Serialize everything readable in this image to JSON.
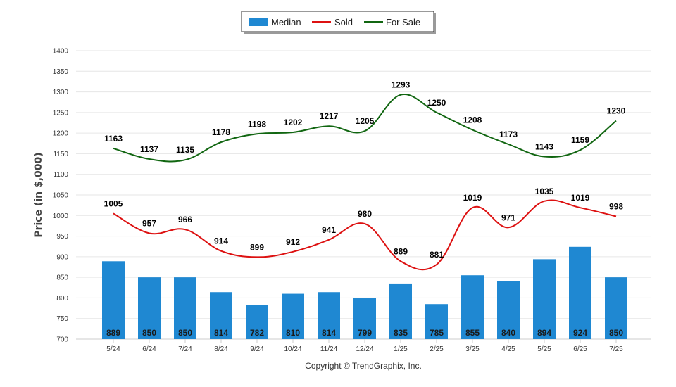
{
  "chart_data": {
    "type": "bar",
    "categories": [
      "5/24",
      "6/24",
      "7/24",
      "8/24",
      "9/24",
      "10/24",
      "11/24",
      "12/24",
      "1/25",
      "2/25",
      "3/25",
      "4/25",
      "5/25",
      "6/25",
      "7/25"
    ],
    "series": [
      {
        "name": "Median",
        "kind": "bar",
        "color": "#1f88d2",
        "values": [
          889,
          850,
          850,
          814,
          782,
          810,
          814,
          799,
          835,
          785,
          855,
          840,
          894,
          924,
          850
        ]
      },
      {
        "name": "Sold",
        "kind": "line",
        "color": "#dd1111",
        "values": [
          1005,
          957,
          966,
          914,
          899,
          912,
          941,
          980,
          889,
          881,
          1019,
          971,
          1035,
          1019,
          998
        ]
      },
      {
        "name": "For Sale",
        "kind": "line",
        "color": "#116611",
        "values": [
          1163,
          1137,
          1135,
          1178,
          1198,
          1202,
          1217,
          1205,
          1293,
          1250,
          1208,
          1173,
          1143,
          1159,
          1230
        ]
      }
    ],
    "ylabel": "Price (in $,000)",
    "ylim": [
      700,
      1400
    ],
    "yticks": [
      700,
      750,
      800,
      850,
      900,
      950,
      1000,
      1050,
      1100,
      1150,
      1200,
      1250,
      1300,
      1350,
      1400
    ],
    "grid": true,
    "legend": "top-center"
  },
  "footer": {
    "copyright": "Copyright © TrendGraphix, Inc."
  }
}
